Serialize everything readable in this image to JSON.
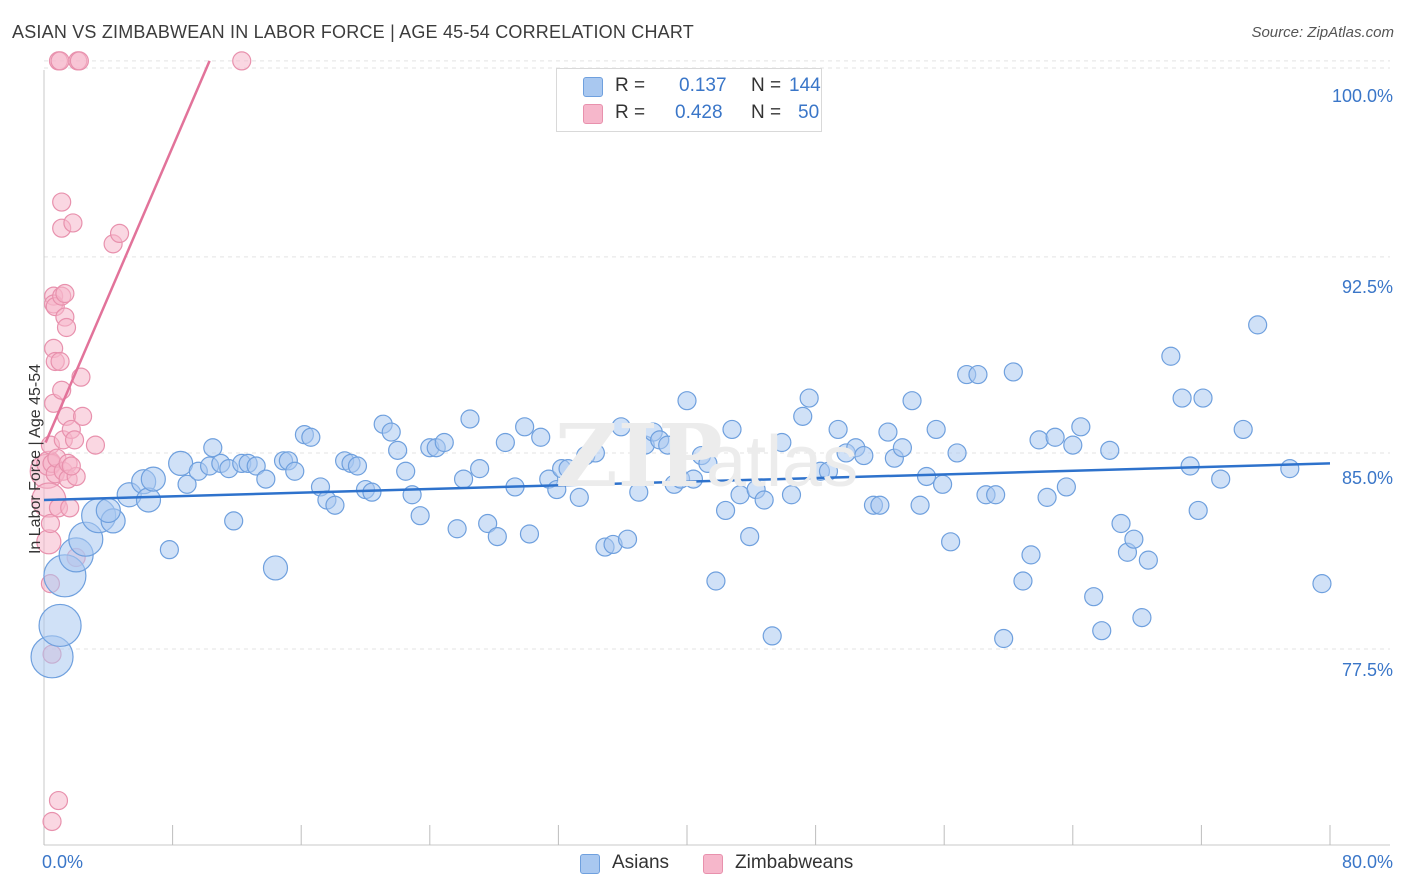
{
  "header": {
    "title": "ASIAN VS ZIMBABWEAN IN LABOR FORCE | AGE 45-54 CORRELATION CHART",
    "source": "Source: ZipAtlas.com"
  },
  "legend": {
    "asian": {
      "r_label": "R =",
      "r_value": "0.137",
      "n_label": "N =",
      "n_value": "144"
    },
    "zimbabwean": {
      "r_label": "R =",
      "r_value": "0.428",
      "n_label": "N =",
      "n_value": "50"
    }
  },
  "bottom_legend": {
    "asian": "Asians",
    "zimbabwean": "Zimbabweans"
  },
  "colors": {
    "asian_fill": "#a9c8f0",
    "asian_stroke": "#6fa0de",
    "asian_line": "#2e72cc",
    "zim_fill": "#f6b7cb",
    "zim_stroke": "#e891ad",
    "zim_line": "#e2739a",
    "grid": "#e3e3e3",
    "axis_text": "#3a76c8"
  },
  "chart_data": {
    "type": "scatter",
    "title": "ASIAN VS ZIMBABWEAN IN LABOR FORCE | AGE 45-54 CORRELATION CHART",
    "ylabel": "In Labor Force | Age 45-54",
    "xlim": [
      0,
      80
    ],
    "ylim": [
      70.0,
      100.8
    ],
    "x_tick_labels": [
      "0.0%",
      "80.0%"
    ],
    "y_ticks": [
      77.5,
      85.0,
      92.5,
      100.0
    ],
    "y_tick_labels": [
      "77.5%",
      "85.0%",
      "92.5%",
      "100.0%"
    ],
    "grid": true,
    "legend_position": "top-center",
    "series": [
      {
        "name": "Asians",
        "r": 0.137,
        "n": 144,
        "trend": {
          "x": [
            0.0,
            80.0
          ],
          "y": [
            83.2,
            84.6
          ]
        },
        "points": [
          [
            0.5,
            77.2,
            3
          ],
          [
            1.0,
            78.4,
            3
          ],
          [
            1.3,
            80.3,
            3
          ],
          [
            2.0,
            81.1,
            2
          ],
          [
            2.6,
            81.7,
            2
          ],
          [
            3.4,
            82.6,
            2
          ],
          [
            4.3,
            82.4,
            1
          ],
          [
            4.0,
            82.8,
            1
          ],
          [
            5.3,
            83.4,
            1
          ],
          [
            6.2,
            83.9,
            1
          ],
          [
            6.5,
            83.2,
            1
          ],
          [
            6.8,
            84.0,
            1
          ],
          [
            7.8,
            81.3,
            0
          ],
          [
            8.5,
            84.6,
            1
          ],
          [
            8.9,
            83.8,
            0
          ],
          [
            9.6,
            84.3,
            0
          ],
          [
            10.3,
            84.5,
            0
          ],
          [
            10.5,
            85.2,
            0
          ],
          [
            11.0,
            84.6,
            0
          ],
          [
            11.5,
            84.4,
            0
          ],
          [
            11.8,
            82.4,
            0
          ],
          [
            12.3,
            84.6,
            0
          ],
          [
            12.7,
            84.6,
            0
          ],
          [
            13.2,
            84.5,
            0
          ],
          [
            13.8,
            84.0,
            0
          ],
          [
            14.4,
            80.6,
            1
          ],
          [
            14.9,
            84.7,
            0
          ],
          [
            15.2,
            84.7,
            0
          ],
          [
            15.6,
            84.3,
            0
          ],
          [
            16.2,
            85.7,
            0
          ],
          [
            16.6,
            85.6,
            0
          ],
          [
            17.2,
            83.7,
            0
          ],
          [
            17.6,
            83.2,
            0
          ],
          [
            18.1,
            83.0,
            0
          ],
          [
            18.7,
            84.7,
            0
          ],
          [
            19.1,
            84.6,
            0
          ],
          [
            19.5,
            84.5,
            0
          ],
          [
            20.0,
            83.6,
            0
          ],
          [
            20.4,
            83.5,
            0
          ],
          [
            21.1,
            86.1,
            0
          ],
          [
            21.6,
            85.8,
            0
          ],
          [
            22.0,
            85.1,
            0
          ],
          [
            22.5,
            84.3,
            0
          ],
          [
            22.9,
            83.4,
            0
          ],
          [
            23.4,
            82.6,
            0
          ],
          [
            24.0,
            85.2,
            0
          ],
          [
            24.4,
            85.2,
            0
          ],
          [
            24.9,
            85.4,
            0
          ],
          [
            25.7,
            82.1,
            0
          ],
          [
            26.1,
            84.0,
            0
          ],
          [
            26.5,
            86.3,
            0
          ],
          [
            27.1,
            84.4,
            0
          ],
          [
            27.6,
            82.3,
            0
          ],
          [
            28.2,
            81.8,
            0
          ],
          [
            28.7,
            85.4,
            0
          ],
          [
            29.3,
            83.7,
            0
          ],
          [
            29.9,
            86.0,
            0
          ],
          [
            30.2,
            81.9,
            0
          ],
          [
            30.9,
            85.6,
            0
          ],
          [
            31.4,
            84.0,
            0
          ],
          [
            31.9,
            83.6,
            0
          ],
          [
            32.2,
            84.4,
            0
          ],
          [
            32.6,
            84.4,
            0
          ],
          [
            33.3,
            83.3,
            0
          ],
          [
            33.7,
            84.9,
            0
          ],
          [
            34.3,
            85.0,
            0
          ],
          [
            34.9,
            81.4,
            0
          ],
          [
            35.4,
            81.5,
            0
          ],
          [
            35.9,
            86.0,
            0
          ],
          [
            36.3,
            81.7,
            0
          ],
          [
            37.0,
            83.5,
            0
          ],
          [
            37.4,
            85.3,
            0
          ],
          [
            37.9,
            85.8,
            0
          ],
          [
            38.3,
            85.5,
            0
          ],
          [
            38.8,
            85.3,
            0
          ],
          [
            39.2,
            83.8,
            0
          ],
          [
            39.6,
            84.0,
            0
          ],
          [
            40.0,
            87.0,
            0
          ],
          [
            40.4,
            84.0,
            0
          ],
          [
            40.9,
            84.9,
            0
          ],
          [
            41.3,
            84.6,
            0
          ],
          [
            41.8,
            80.1,
            0
          ],
          [
            42.4,
            82.8,
            0
          ],
          [
            42.8,
            85.9,
            0
          ],
          [
            43.3,
            83.4,
            0
          ],
          [
            43.9,
            81.8,
            0
          ],
          [
            44.3,
            83.6,
            0
          ],
          [
            44.8,
            83.2,
            0
          ],
          [
            45.3,
            78.0,
            0
          ],
          [
            45.9,
            85.4,
            0
          ],
          [
            46.5,
            83.4,
            0
          ],
          [
            47.2,
            86.4,
            0
          ],
          [
            47.6,
            87.1,
            0
          ],
          [
            48.3,
            84.3,
            0
          ],
          [
            48.8,
            84.3,
            0
          ],
          [
            49.4,
            85.9,
            0
          ],
          [
            49.9,
            85.0,
            0
          ],
          [
            50.5,
            85.2,
            0
          ],
          [
            51.0,
            84.9,
            0
          ],
          [
            51.6,
            83.0,
            0
          ],
          [
            52.0,
            83.0,
            0
          ],
          [
            52.5,
            85.8,
            0
          ],
          [
            52.9,
            84.8,
            0
          ],
          [
            53.4,
            85.2,
            0
          ],
          [
            54.0,
            87.0,
            0
          ],
          [
            54.5,
            83.0,
            0
          ],
          [
            54.9,
            84.1,
            0
          ],
          [
            55.5,
            85.9,
            0
          ],
          [
            55.9,
            83.8,
            0
          ],
          [
            56.4,
            81.6,
            0
          ],
          [
            56.8,
            85.0,
            0
          ],
          [
            57.4,
            88.0,
            0
          ],
          [
            58.1,
            88.0,
            0
          ],
          [
            58.6,
            83.4,
            0
          ],
          [
            59.2,
            83.4,
            0
          ],
          [
            59.7,
            77.9,
            0
          ],
          [
            60.3,
            88.1,
            0
          ],
          [
            60.9,
            80.1,
            0
          ],
          [
            61.4,
            81.1,
            0
          ],
          [
            61.9,
            85.5,
            0
          ],
          [
            62.4,
            83.3,
            0
          ],
          [
            62.9,
            85.6,
            0
          ],
          [
            63.6,
            83.7,
            0
          ],
          [
            64.0,
            85.3,
            0
          ],
          [
            64.5,
            86.0,
            0
          ],
          [
            65.3,
            79.5,
            0
          ],
          [
            65.8,
            78.2,
            0
          ],
          [
            66.3,
            85.1,
            0
          ],
          [
            67.0,
            82.3,
            0
          ],
          [
            67.4,
            81.2,
            0
          ],
          [
            67.8,
            81.7,
            0
          ],
          [
            68.3,
            78.7,
            0
          ],
          [
            68.7,
            80.9,
            0
          ],
          [
            70.1,
            88.7,
            0
          ],
          [
            70.8,
            87.1,
            0
          ],
          [
            71.3,
            84.5,
            0
          ],
          [
            71.8,
            82.8,
            0
          ],
          [
            72.1,
            87.1,
            0
          ],
          [
            73.2,
            84.0,
            0
          ],
          [
            74.6,
            85.9,
            0
          ],
          [
            75.5,
            89.9,
            0
          ],
          [
            77.5,
            84.4,
            0
          ],
          [
            79.5,
            80.0,
            0
          ]
        ]
      },
      {
        "name": "Zimbabweans",
        "r": 0.428,
        "n": 50,
        "trend": {
          "x": [
            0.1,
            10.3
          ],
          "y": [
            85.4,
            100.0
          ]
        },
        "points": [
          [
            0.2,
            84.3,
            2
          ],
          [
            0.3,
            83.2,
            2
          ],
          [
            0.3,
            84.6,
            1
          ],
          [
            0.3,
            81.6,
            1
          ],
          [
            0.4,
            85.3,
            0
          ],
          [
            0.4,
            82.3,
            0
          ],
          [
            0.5,
            84.6,
            0
          ],
          [
            0.5,
            77.3,
            0
          ],
          [
            0.5,
            70.9,
            0
          ],
          [
            0.6,
            89.0,
            0
          ],
          [
            0.6,
            91.0,
            0
          ],
          [
            0.6,
            90.7,
            0
          ],
          [
            0.6,
            86.9,
            0
          ],
          [
            0.7,
            88.5,
            0
          ],
          [
            0.7,
            90.6,
            0
          ],
          [
            0.7,
            84.2,
            0
          ],
          [
            0.8,
            84.8,
            0
          ],
          [
            0.9,
            71.7,
            0
          ],
          [
            0.9,
            82.9,
            0
          ],
          [
            0.9,
            100.0,
            0
          ],
          [
            1.0,
            100.0,
            0
          ],
          [
            1.0,
            88.5,
            0
          ],
          [
            1.1,
            93.6,
            0
          ],
          [
            1.1,
            91.0,
            0
          ],
          [
            1.1,
            87.4,
            0
          ],
          [
            1.2,
            84.3,
            0
          ],
          [
            1.2,
            85.5,
            0
          ],
          [
            1.1,
            94.6,
            0
          ],
          [
            1.3,
            91.1,
            0
          ],
          [
            1.3,
            90.2,
            0
          ],
          [
            1.4,
            89.8,
            0
          ],
          [
            1.4,
            86.4,
            0
          ],
          [
            1.5,
            84.6,
            0
          ],
          [
            1.5,
            84.0,
            0
          ],
          [
            1.6,
            82.9,
            0
          ],
          [
            1.7,
            85.9,
            0
          ],
          [
            1.8,
            93.8,
            0
          ],
          [
            1.9,
            85.5,
            0
          ],
          [
            2.0,
            84.1,
            0
          ],
          [
            2.1,
            100.0,
            0
          ],
          [
            2.2,
            100.0,
            0
          ],
          [
            2.0,
            81.0,
            0
          ],
          [
            2.3,
            87.9,
            0
          ],
          [
            2.4,
            86.4,
            0
          ],
          [
            3.2,
            85.3,
            0
          ],
          [
            4.3,
            93.0,
            0
          ],
          [
            4.7,
            93.4,
            0
          ],
          [
            12.3,
            100.0,
            0
          ],
          [
            1.7,
            84.5,
            0
          ],
          [
            0.4,
            80.0,
            0
          ]
        ]
      }
    ]
  }
}
